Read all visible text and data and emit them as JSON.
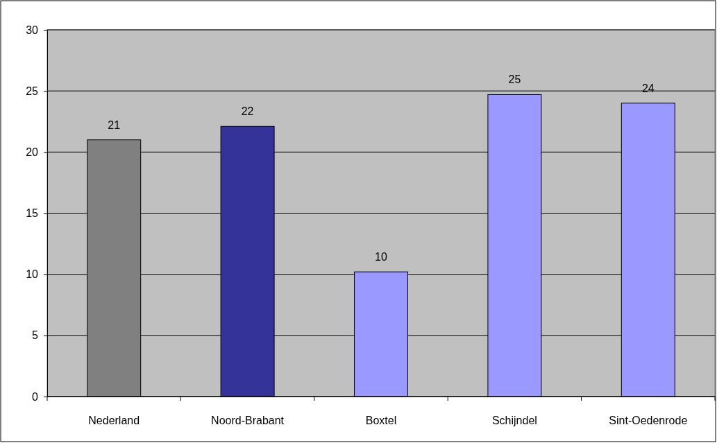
{
  "chart_data": {
    "type": "bar",
    "categories": [
      "Nederland",
      "Noord-Brabant",
      "Boxtel",
      "Schijndel",
      "Sint-Oedenrode"
    ],
    "values": [
      21,
      22.1,
      10.2,
      24.7,
      24
    ],
    "value_labels": [
      "21",
      "22",
      "10",
      "25",
      "24"
    ],
    "colors": [
      "#808080",
      "#333399",
      "#9999ff",
      "#9999ff",
      "#9999ff"
    ],
    "ylim": [
      0,
      30
    ],
    "yticks": [
      0,
      5,
      10,
      15,
      20,
      25,
      30
    ],
    "grid": "y"
  }
}
